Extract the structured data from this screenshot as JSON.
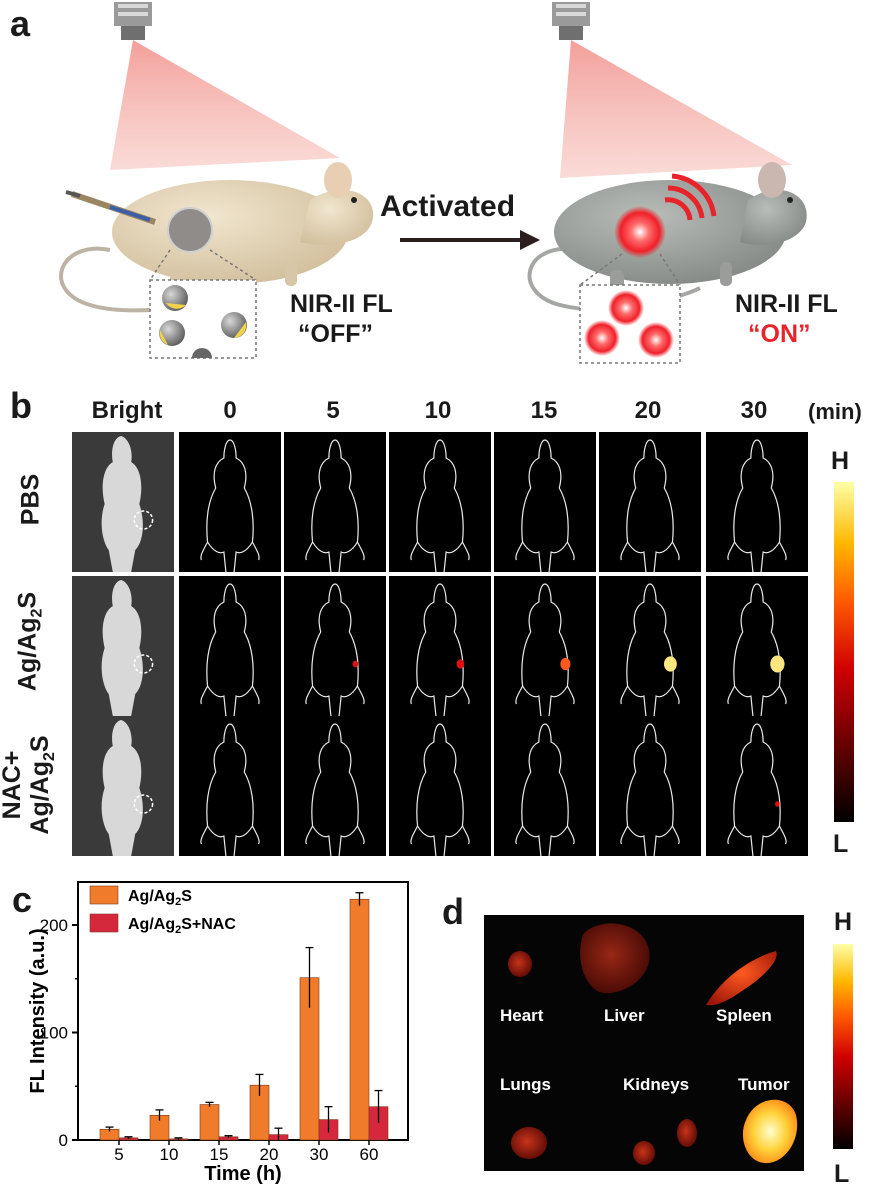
{
  "panel_a": {
    "letter": "a",
    "arrow_label": "Activated",
    "left_caption_line1": "NIR-II FL",
    "left_caption_line2": "“OFF”",
    "right_caption_line1": "NIR-II FL",
    "right_caption_line2": "“ON”",
    "on_color": "#e8232a"
  },
  "panel_b": {
    "letter": "b",
    "columns": [
      "Bright",
      "0",
      "5",
      "10",
      "15",
      "20",
      "30"
    ],
    "unit": "(min)",
    "rows": [
      {
        "label": "PBS",
        "signal": [
          0,
          0,
          0,
          0,
          0,
          0
        ]
      },
      {
        "label": "Ag/Ag2S",
        "label_main": "Ag/Ag",
        "label_sub": "2",
        "label_tail": "S",
        "signal": [
          0,
          0.15,
          0.35,
          0.6,
          0.85,
          1.0
        ]
      },
      {
        "label_line1": "NAC+",
        "label_main": "Ag/Ag",
        "label_sub": "2",
        "label_tail": "S",
        "signal": [
          0,
          0,
          0,
          0,
          0,
          0.05
        ]
      }
    ],
    "colorbar_high": "H",
    "colorbar_low": "L"
  },
  "panel_c": {
    "letter": "c",
    "chart_data": {
      "type": "bar",
      "categories": [
        "5",
        "10",
        "15",
        "20",
        "30",
        "60"
      ],
      "series": [
        {
          "name": "Ag/Ag2S",
          "values": [
            10,
            23,
            33,
            51,
            151,
            224
          ],
          "errors": [
            2,
            5,
            2,
            10,
            28,
            6
          ],
          "color": "#f07b2a"
        },
        {
          "name": "Ag/Ag2S+NAC",
          "values": [
            2,
            1,
            3,
            5,
            19,
            31
          ],
          "errors": [
            1,
            1,
            1,
            6,
            12,
            15
          ],
          "color": "#d6283c"
        }
      ],
      "xlabel": "Time (h)",
      "ylabel": "FL Intensity (a.u.)",
      "ylim": [
        0,
        240
      ],
      "yticks": [
        0,
        100,
        200
      ],
      "legend": "top-left"
    },
    "legend_main": "Ag/Ag",
    "legend_sub": "2",
    "legend_tail1": "S",
    "legend_tail2": "S+NAC"
  },
  "panel_d": {
    "letter": "d",
    "organs": [
      "Heart",
      "Liver",
      "Spleen",
      "Lungs",
      "Kidneys",
      "Tumor"
    ],
    "colorbar_high": "H",
    "colorbar_low": "L"
  }
}
